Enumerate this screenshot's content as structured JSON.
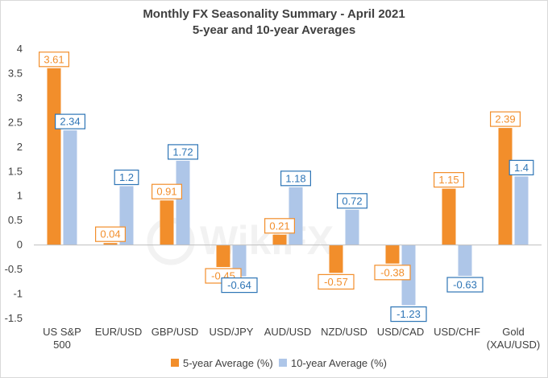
{
  "chart_data": {
    "type": "bar",
    "title": "Monthly FX Seasonality Summary - April 2021",
    "subtitle": "5-year and 10-year Averages",
    "xlabel": "",
    "ylabel": "",
    "ylim": [
      -1.5,
      4
    ],
    "yticks": [
      "4",
      "3.5",
      "3",
      "2.5",
      "2",
      "1.5",
      "1",
      "0.5",
      "0",
      "-0.5",
      "-1",
      "-1.5"
    ],
    "grid": false,
    "legend_position": "bottom",
    "categories": [
      [
        "US S&P",
        "500"
      ],
      [
        "EUR/USD"
      ],
      [
        "GBP/USD"
      ],
      [
        "USD/JPY"
      ],
      [
        "AUD/USD"
      ],
      [
        "NZD/USD"
      ],
      [
        "USD/CAD"
      ],
      [
        "USD/CHF"
      ],
      [
        "Gold",
        "(XAU/USD)"
      ]
    ],
    "series": [
      {
        "name": "5-year Average (%)",
        "color": "#F28E2B",
        "values": [
          3.61,
          0.04,
          0.91,
          -0.45,
          0.21,
          -0.57,
          -0.38,
          1.15,
          2.39
        ],
        "labels": [
          "3.61",
          "0.04",
          "0.91",
          "-0.45",
          "0.21",
          "-0.57",
          "-0.38",
          "1.15",
          "2.39"
        ]
      },
      {
        "name": "10-year Average (%)",
        "color": "#AEC6E8",
        "label_color": "#2E75B6",
        "values": [
          2.34,
          1.2,
          1.72,
          -0.64,
          1.18,
          0.72,
          -1.23,
          -0.63,
          1.4
        ],
        "labels": [
          "2.34",
          "1.2",
          "1.72",
          "-0.64",
          "1.18",
          "0.72",
          "-1.23",
          "-0.63",
          "1.4"
        ]
      }
    ],
    "watermark": "WikiFX"
  }
}
